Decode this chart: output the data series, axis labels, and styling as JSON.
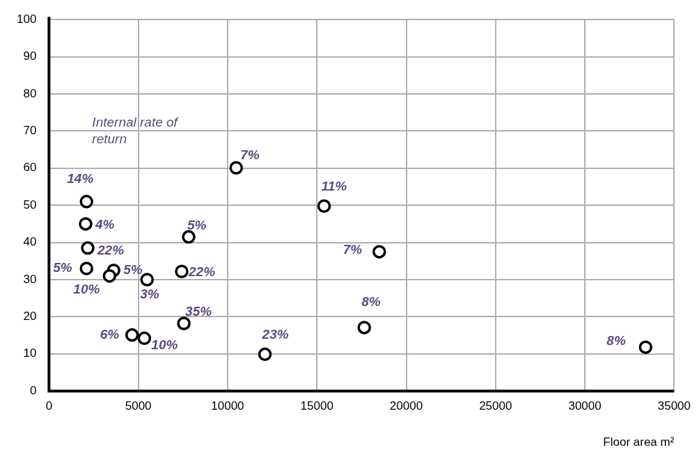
{
  "chart_data": {
    "type": "scatter",
    "xlabel": "Floor area m²",
    "annotations": [
      "Internal rate of return",
      {
        "text": "14%",
        "x": 2100,
        "y": 51
      },
      {
        "text": "4%",
        "x": 2050,
        "y": 45
      },
      {
        "text": "22%",
        "x": 2170,
        "y": 38.5
      },
      {
        "text": "5%",
        "x": 2100,
        "y": 33
      },
      {
        "text": "5%",
        "x": 3620,
        "y": 32.5
      },
      {
        "text": "10%",
        "x": 3390,
        "y": 31
      },
      {
        "text": "3%",
        "x": 5490,
        "y": 30
      },
      {
        "text": "5%",
        "x": 7820,
        "y": 41.5
      },
      {
        "text": "22%",
        "x": 7430,
        "y": 32.2
      },
      {
        "text": "35%",
        "x": 7550,
        "y": 18.2
      },
      {
        "text": "6%",
        "x": 4650,
        "y": 15.1
      },
      {
        "text": "10%",
        "x": 5340,
        "y": 14.2
      },
      {
        "text": "7%",
        "x": 10480,
        "y": 60.1
      },
      {
        "text": "11%",
        "x": 15400,
        "y": 49.8
      },
      {
        "text": "7%",
        "x": 18490,
        "y": 37.5
      },
      {
        "text": "8%",
        "x": 17650,
        "y": 17.1
      },
      {
        "text": "23%",
        "x": 12090,
        "y": 9.9
      },
      {
        "text": "8%",
        "x": 33400,
        "y": 11.8
      }
    ],
    "x": [
      2100,
      2050,
      2170,
      2100,
      3620,
      3390,
      5490,
      7820,
      7430,
      7550,
      4650,
      5340,
      10480,
      15400,
      18490,
      17650,
      12090,
      33400
    ],
    "series": [
      {
        "color": "#000000",
        "values": [
          51,
          45,
          38.5,
          33,
          32.5,
          31,
          30,
          41.5,
          32.2,
          18.2,
          15.1,
          14.2,
          60.1,
          49.8,
          37.5,
          17.1,
          9.9,
          11.8
        ]
      }
    ],
    "xlim": [
      0,
      35000
    ],
    "xticks": [
      0,
      5000,
      10000,
      15000,
      20000,
      25000,
      30000,
      35000
    ],
    "ylim": [
      0,
      100
    ],
    "yticks": [
      0,
      10,
      20,
      30,
      40,
      50,
      60,
      70,
      80,
      90,
      100
    ],
    "grid": true,
    "legend": false,
    "marker": "circle"
  }
}
